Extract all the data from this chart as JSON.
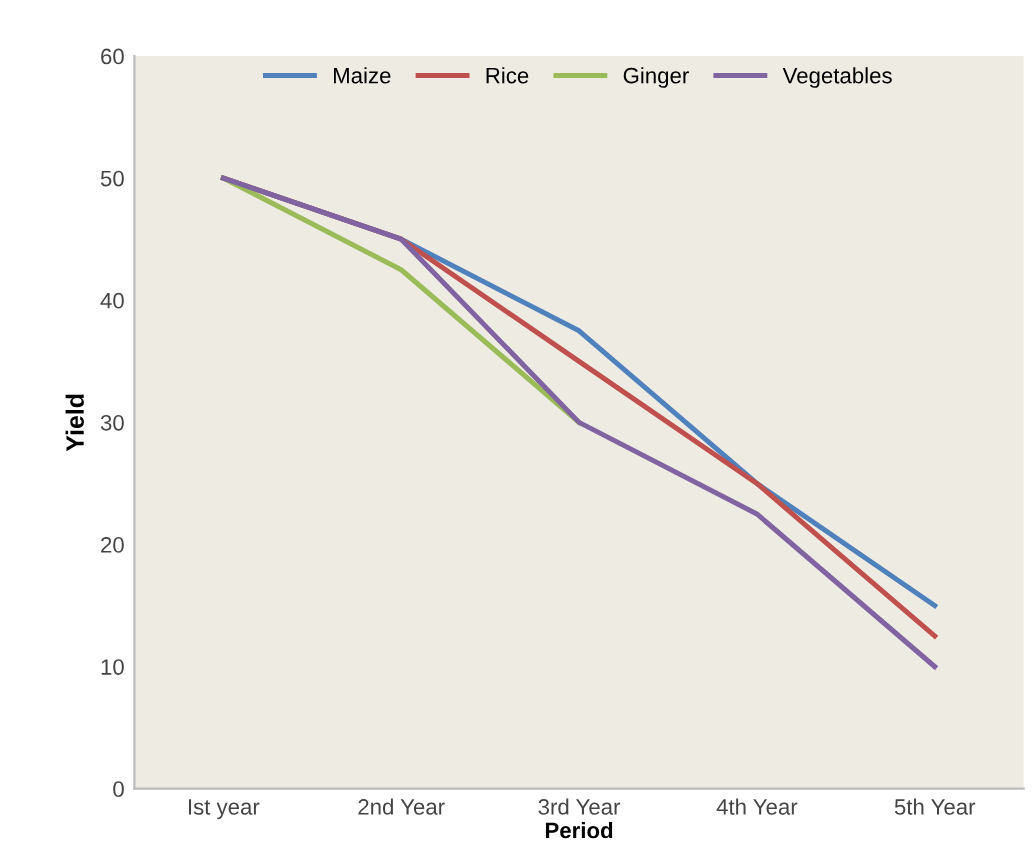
{
  "chart_data": {
    "type": "line",
    "xlabel": "Period",
    "ylabel": "Yield",
    "categories": [
      "Ist year",
      "2nd Year",
      "3rd Year",
      "4th Year",
      "5th Year"
    ],
    "series": [
      {
        "name": "Maize",
        "color": "#4f81bd",
        "values": [
          50,
          45,
          37.5,
          25,
          15
        ]
      },
      {
        "name": "Rice",
        "color": "#c0504d",
        "values": [
          50,
          45,
          35,
          25,
          12.5
        ]
      },
      {
        "name": "Ginger",
        "color": "#9bbb59",
        "values": [
          50,
          42.5,
          30,
          null,
          null
        ]
      },
      {
        "name": "Vegetables",
        "color": "#8064a2",
        "values": [
          50,
          45,
          30,
          22.5,
          10
        ]
      }
    ],
    "ylim": [
      0,
      60
    ],
    "yticks": [
      0,
      10,
      20,
      30,
      40,
      50,
      60
    ],
    "grid": false,
    "legend": "top",
    "marker": "none",
    "line_style": "solid"
  }
}
